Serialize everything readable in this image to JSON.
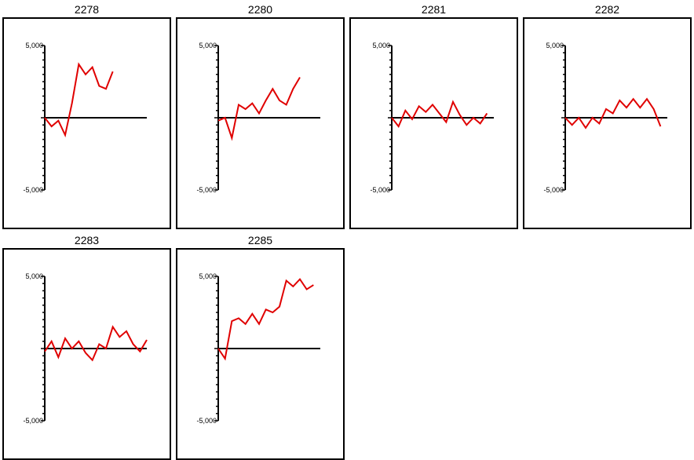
{
  "chart_data": [
    {
      "type": "line",
      "title": "2278",
      "ylim": [
        -5000,
        5000
      ],
      "yticks": [
        5000,
        -5000
      ],
      "ytick_labels": [
        "5,000",
        "-5,000"
      ],
      "xlim": [
        0,
        15
      ],
      "grid": false,
      "series": [
        {
          "color": "#e00000",
          "values": [
            0,
            -600,
            -200,
            -1200,
            1000,
            3700,
            3000,
            3500,
            2200,
            2000,
            3200
          ]
        }
      ]
    },
    {
      "type": "line",
      "title": "2280",
      "ylim": [
        -5000,
        5000
      ],
      "yticks": [
        5000,
        -5000
      ],
      "ytick_labels": [
        "5,000",
        "-5,000"
      ],
      "xlim": [
        0,
        15
      ],
      "grid": false,
      "series": [
        {
          "color": "#e00000",
          "values": [
            -200,
            0,
            -1400,
            900,
            600,
            1000,
            300,
            1200,
            2000,
            1200,
            900,
            2000,
            2800
          ]
        }
      ]
    },
    {
      "type": "line",
      "title": "2281",
      "ylim": [
        -5000,
        5000
      ],
      "yticks": [
        5000,
        -5000
      ],
      "ytick_labels": [
        "5,000",
        "-5,000"
      ],
      "xlim": [
        0,
        15
      ],
      "grid": false,
      "series": [
        {
          "color": "#e00000",
          "values": [
            0,
            -600,
            500,
            -100,
            800,
            400,
            900,
            300,
            -300,
            1100,
            200,
            -500,
            0,
            -400,
            300
          ]
        }
      ]
    },
    {
      "type": "line",
      "title": "2282",
      "ylim": [
        -5000,
        5000
      ],
      "yticks": [
        5000,
        -5000
      ],
      "ytick_labels": [
        "5,000",
        "-5,000"
      ],
      "xlim": [
        0,
        15
      ],
      "grid": false,
      "series": [
        {
          "color": "#e00000",
          "values": [
            0,
            -500,
            0,
            -700,
            0,
            -400,
            600,
            300,
            1200,
            700,
            1300,
            700,
            1300,
            600,
            -600
          ]
        }
      ]
    },
    {
      "type": "line",
      "title": "2283",
      "ylim": [
        -5000,
        5000
      ],
      "yticks": [
        5000,
        -5000
      ],
      "ytick_labels": [
        "5,000",
        "-5,000"
      ],
      "xlim": [
        0,
        15
      ],
      "grid": false,
      "series": [
        {
          "color": "#e00000",
          "values": [
            -200,
            500,
            -600,
            700,
            0,
            500,
            -300,
            -800,
            300,
            0,
            1500,
            800,
            1200,
            300,
            -200,
            600
          ]
        }
      ]
    },
    {
      "type": "line",
      "title": "2285",
      "ylim": [
        -5000,
        5000
      ],
      "yticks": [
        5000,
        -5000
      ],
      "ytick_labels": [
        "5,000",
        "-5,000"
      ],
      "xlim": [
        0,
        15
      ],
      "grid": false,
      "series": [
        {
          "color": "#e00000",
          "values": [
            0,
            -700,
            1900,
            2100,
            1700,
            2400,
            1700,
            2700,
            2500,
            2900,
            4700,
            4300,
            4800,
            4100,
            4400
          ]
        }
      ]
    }
  ]
}
